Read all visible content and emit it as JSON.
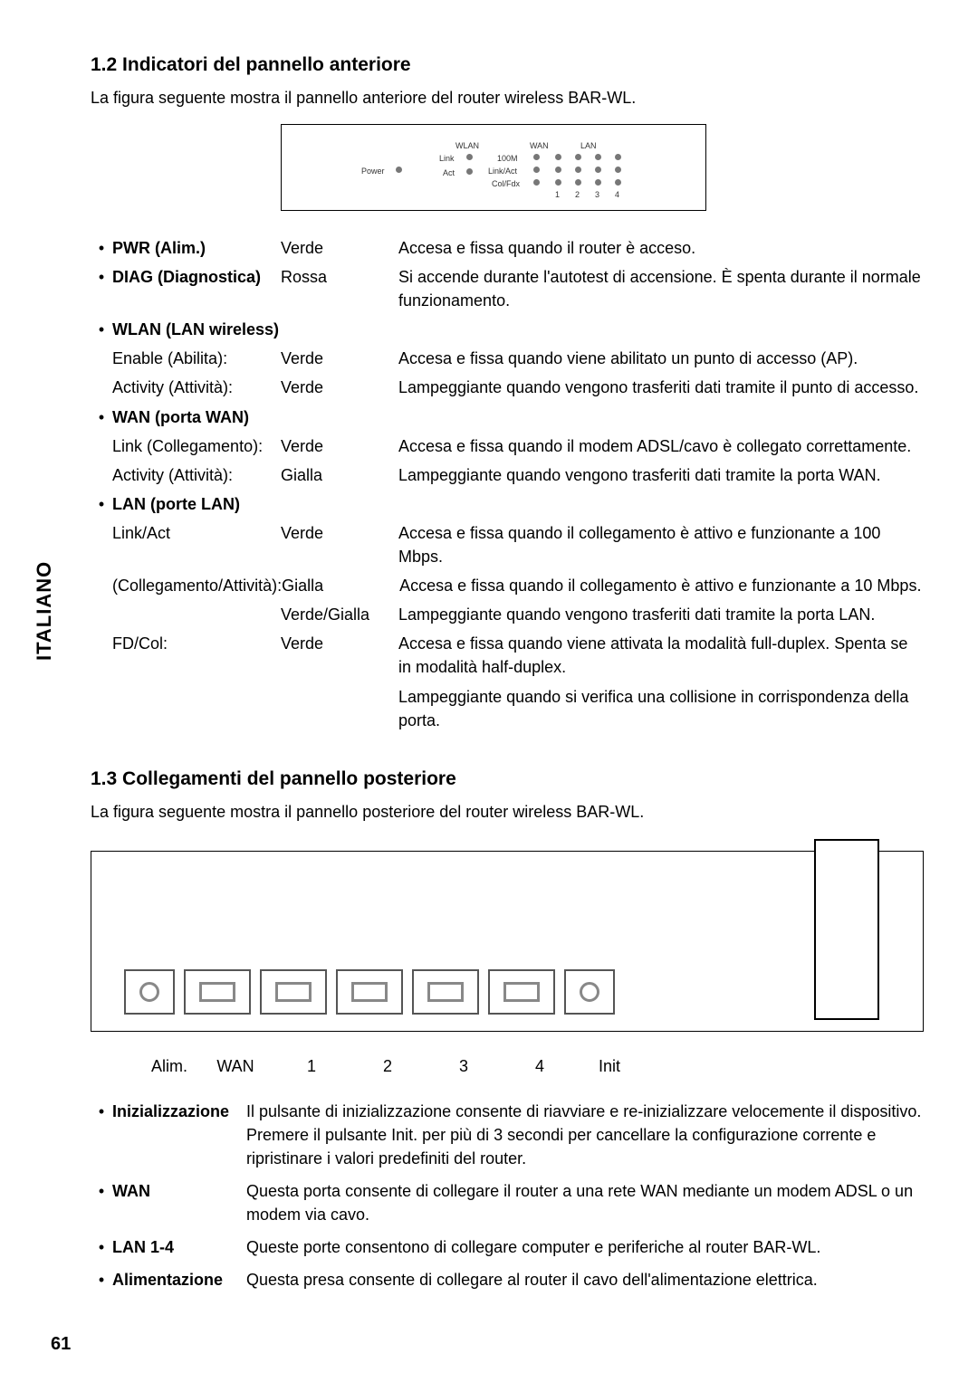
{
  "page_number": "61",
  "side_tab": "ITALIANO",
  "section_1_2": {
    "heading": "1.2  Indicatori del pannello anteriore",
    "intro": "La figura seguente mostra il pannello anteriore del router wireless BAR-WL.",
    "diagram": {
      "power": "Power",
      "wlan": "WLAN",
      "link": "Link",
      "act": "Act",
      "wan": "WAN",
      "m100": "100M",
      "linkact": "Link/Act",
      "colfdx": "Col/Fdx",
      "lan": "LAN",
      "n1": "1",
      "n2": "2",
      "n3": "3",
      "n4": "4"
    },
    "rows": [
      {
        "bullet": true,
        "name": "PWR (Alim.)",
        "color": "Verde",
        "desc": "Accesa e fissa quando il router è acceso."
      },
      {
        "bullet": true,
        "name": "DIAG (Diagnostica)",
        "color": "Rossa",
        "desc": "Si accende durante l'autotest di accensione. È spenta durante il normale funzionamento."
      },
      {
        "bullet": true,
        "name": "WLAN (LAN wireless)",
        "color": "",
        "desc": ""
      },
      {
        "bullet": false,
        "name": "Enable (Abilita):",
        "color": "Verde",
        "desc": "Accesa e fissa quando viene abilitato un punto di accesso (AP)."
      },
      {
        "bullet": false,
        "name": "Activity (Attività):",
        "color": "Verde",
        "desc": "Lampeggiante quando vengono trasferiti dati tramite il punto di accesso."
      },
      {
        "bullet": true,
        "name": "WAN (porta WAN)",
        "color": "",
        "desc": ""
      },
      {
        "bullet": false,
        "name": "Link (Collegamento):",
        "color": "Verde",
        "desc": "Accesa e fissa quando il modem ADSL/cavo è collegato correttamente."
      },
      {
        "bullet": false,
        "name": "Activity (Attività):",
        "color": "Gialla",
        "desc": "Lampeggiante quando vengono trasferiti dati tramite la porta WAN."
      },
      {
        "bullet": true,
        "name": "LAN (porte LAN)",
        "color": "",
        "desc": ""
      },
      {
        "bullet": false,
        "name": "Link/Act",
        "color": "Verde",
        "desc": "Accesa e fissa quando il collegamento è attivo e funzionante a 100 Mbps."
      },
      {
        "bullet": false,
        "name": "(Collegamento/Attività):",
        "color": "Gialla",
        "desc": "Accesa e fissa quando il collegamento è attivo e funzionante a 10 Mbps."
      },
      {
        "bullet": false,
        "name": "",
        "color": "Verde/Gialla",
        "desc": "Lampeggiante quando vengono trasferiti dati tramite la porta LAN."
      },
      {
        "bullet": false,
        "name": "FD/Col:",
        "color": "Verde",
        "desc": "Accesa e fissa quando viene attivata la modalità full-duplex. Spenta se in modalità half-duplex."
      },
      {
        "bullet": false,
        "name": "",
        "color": "",
        "desc": "Lampeggiante quando si verifica una collisione in corrispondenza della porta."
      }
    ]
  },
  "section_1_3": {
    "heading": "1.3  Collegamenti del pannello posteriore",
    "intro": "La figura seguente mostra il pannello posteriore del router wireless BAR-WL.",
    "rear_labels": {
      "alim": "Alim.",
      "wan": "WAN",
      "p1": "1",
      "p2": "2",
      "p3": "3",
      "p4": "4",
      "init": "Init"
    },
    "items": [
      {
        "term": "Inizializzazione",
        "def": "Il pulsante di inizializzazione consente di riavviare e re-inizializzare velocemente il dispositivo. Premere il pulsante Init. per più di 3 secondi per cancellare la configurazione corrente e ripristinare i valori predefiniti del router."
      },
      {
        "term": "WAN",
        "def": "Questa porta consente di collegare il router a una rete WAN mediante un modem ADSL o un modem via cavo."
      },
      {
        "term": "LAN 1-4",
        "def": "Queste porte consentono di collegare computer e periferiche al router BAR-WL."
      },
      {
        "term": "Alimentazione",
        "def": "Questa presa consente di collegare al router il cavo dell'alimentazione elettrica."
      }
    ]
  }
}
